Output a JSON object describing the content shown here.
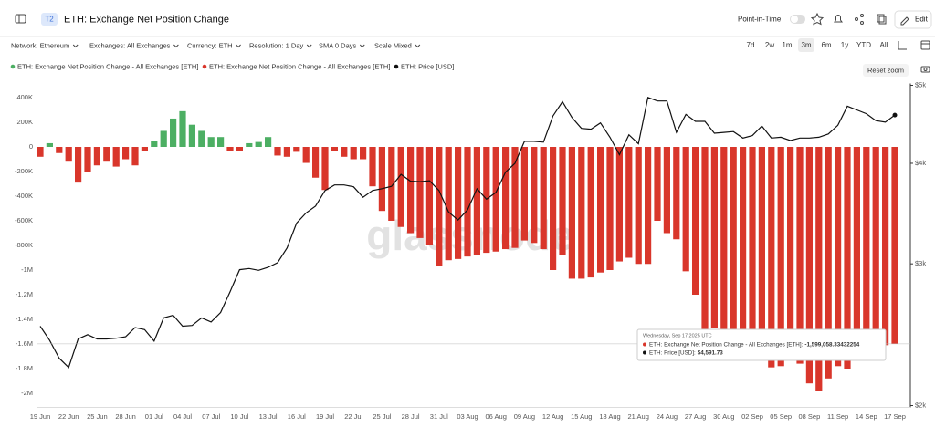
{
  "header": {
    "badge": "T2",
    "title": "ETH: Exchange Net Position Change",
    "point_in_time": "Point-in-Time",
    "edit": "Edit"
  },
  "filters": [
    "Network: Ethereum",
    "Exchanges: All Exchanges",
    "Currency: ETH",
    "Resolution: 1 Day",
    "SMA 0 Days",
    "Scale Mixed"
  ],
  "time_ranges": [
    "7d",
    "2w",
    "1m",
    "3m",
    "6m",
    "1y",
    "YTD",
    "All"
  ],
  "reset_zoom": "Reset zoom",
  "watermark": "glassnode",
  "chart_data": {
    "type": "bar",
    "categories": [
      "19 Jun",
      null,
      null,
      "22 Jun",
      null,
      null,
      "25 Jun",
      null,
      null,
      "28 Jun",
      null,
      null,
      "01 Jul",
      null,
      null,
      "04 Jul",
      null,
      null,
      "07 Jul",
      null,
      null,
      "10 Jul",
      null,
      null,
      "13 Jul",
      null,
      null,
      "16 Jul",
      null,
      null,
      "19 Jul",
      null,
      null,
      "22 Jul",
      null,
      null,
      "25 Jul",
      null,
      null,
      "28 Jul",
      null,
      null,
      "31 Jul",
      null,
      null,
      "03 Aug",
      null,
      null,
      "06 Aug",
      null,
      null,
      "09 Aug",
      null,
      null,
      "12 Aug",
      null,
      null,
      "15 Aug",
      null,
      null,
      "18 Aug",
      null,
      null,
      "21 Aug",
      null,
      null,
      "24 Aug",
      null,
      null,
      "27 Aug",
      null,
      null,
      "30 Aug",
      null,
      null,
      "02 Sep",
      null,
      null,
      "05 Sep",
      null,
      null,
      "08 Sep",
      null,
      null,
      "11 Sep",
      null,
      null,
      "14 Sep",
      null,
      null,
      "17 Sep"
    ],
    "series": [
      {
        "name": "ETH: Exchange Net Position Change - All Exchanges [ETH]",
        "type": "bar",
        "color": "#d9362b",
        "positive_color": "#4caf63",
        "values": [
          -80000,
          30000,
          -50000,
          -120000,
          -290000,
          -200000,
          -150000,
          -120000,
          -160000,
          -100000,
          -150000,
          -30000,
          50000,
          130000,
          230000,
          290000,
          180000,
          130000,
          80000,
          80000,
          -30000,
          -30000,
          30000,
          40000,
          80000,
          -70000,
          -80000,
          -40000,
          -130000,
          -250000,
          -350000,
          -30000,
          -80000,
          -100000,
          -100000,
          -320000,
          -520000,
          -600000,
          -650000,
          -700000,
          -740000,
          -800000,
          -970000,
          -920000,
          -910000,
          -890000,
          -880000,
          -860000,
          -850000,
          -830000,
          -820000,
          -760000,
          -780000,
          -830000,
          -1000000,
          -880000,
          -1070000,
          -1070000,
          -1060000,
          -1020000,
          -1000000,
          -930000,
          -900000,
          -950000,
          -950000,
          -600000,
          -700000,
          -750000,
          -1010000,
          -1200000,
          -1500000,
          -1470000,
          -1480000,
          -1490000,
          -1500000,
          -1500000,
          -1540000,
          -1790000,
          -1780000,
          -1700000,
          -1760000,
          -1920000,
          -1980000,
          -1880000,
          -1780000,
          -1800000,
          -1700000,
          -1610000,
          -1620000,
          -1610000,
          -1599058.33432254
        ]
      },
      {
        "name": "ETH: Price [USD]",
        "type": "line",
        "axis": "y2",
        "color": "#111111",
        "values": [
          2510,
          2410,
          2290,
          2230,
          2420,
          2450,
          2420,
          2420,
          2425,
          2435,
          2500,
          2485,
          2405,
          2570,
          2590,
          2510,
          2515,
          2570,
          2540,
          2610,
          2770,
          2950,
          2960,
          2945,
          2970,
          3010,
          3140,
          3370,
          3470,
          3540,
          3700,
          3760,
          3760,
          3740,
          3630,
          3700,
          3720,
          3745,
          3875,
          3800,
          3795,
          3805,
          3700,
          3480,
          3400,
          3500,
          3720,
          3610,
          3680,
          3900,
          4000,
          4260,
          4260,
          4250,
          4580,
          4770,
          4560,
          4420,
          4410,
          4490,
          4310,
          4100,
          4340,
          4230,
          4830,
          4780,
          4780,
          4370,
          4600,
          4510,
          4510,
          4360,
          4370,
          4380,
          4300,
          4330,
          4450,
          4300,
          4310,
          4270,
          4300,
          4300,
          4310,
          4350,
          4460,
          4710,
          4660,
          4610,
          4520,
          4500,
          4591.73
        ]
      }
    ],
    "ylim": [
      -2100000,
      500000
    ],
    "yticks": [
      {
        "value": 400000,
        "label": "400K"
      },
      {
        "value": 200000,
        "label": "200K"
      },
      0,
      {
        "value": -200000,
        "label": "-200K"
      },
      {
        "value": -400000,
        "label": "-400K"
      },
      {
        "value": -600000,
        "label": "-600K"
      },
      {
        "value": -800000,
        "label": "-800K"
      },
      {
        "value": -1000000,
        "label": "-1M"
      },
      {
        "value": -1200000,
        "label": "-1.2M"
      },
      {
        "value": -1400000,
        "label": "-1.4M"
      },
      {
        "value": -1600000,
        "label": "-1.6M"
      },
      {
        "value": -1800000,
        "label": "-1.8M"
      },
      {
        "value": -2000000,
        "label": "-2M"
      }
    ],
    "y2lim": [
      2000,
      5000
    ],
    "y2ticks": [
      {
        "value": 5000,
        "label": "$5k"
      },
      {
        "value": 4000,
        "label": "$4k"
      },
      {
        "value": 3000,
        "label": "$3k"
      },
      {
        "value": 2000,
        "label": "$2k"
      }
    ],
    "y2_log": true,
    "grid": false,
    "tooltip": {
      "date": "Wednesday, Sep 17 2025 UTC",
      "rows": [
        {
          "label": "ETH: Exchange Net Position Change - All Exchanges [ETH]:",
          "value": "-1,599,058.33432254"
        },
        {
          "label": "ETH: Price [USD]:",
          "value": "$4,591.73"
        }
      ]
    }
  }
}
